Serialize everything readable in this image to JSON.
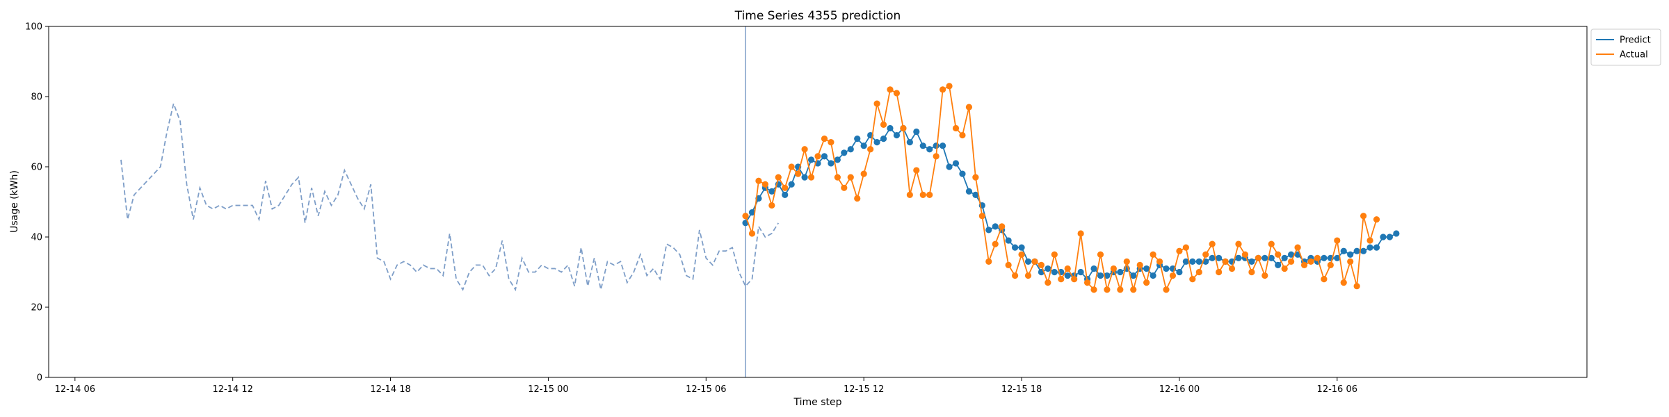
{
  "chart_data": {
    "type": "line",
    "title": "Time Series 4355 prediction",
    "xlabel": "Time step",
    "ylabel": "Usage (kWh)",
    "ylim": [
      0,
      100
    ],
    "xlim": [
      "2024-12-14T05:00",
      "2024-12-16T15:30"
    ],
    "yticks": [
      0,
      20,
      40,
      60,
      80,
      100
    ],
    "xticks": [
      {
        "t": "2024-12-14T06:00",
        "label": "12-14 06"
      },
      {
        "t": "2024-12-14T12:00",
        "label": "12-14 12"
      },
      {
        "t": "2024-12-14T18:00",
        "label": "12-14 18"
      },
      {
        "t": "2024-12-15T00:00",
        "label": "12-15 00"
      },
      {
        "t": "2024-12-15T06:00",
        "label": "12-15 06"
      },
      {
        "t": "2024-12-15T12:00",
        "label": "12-15 12"
      },
      {
        "t": "2024-12-15T18:00",
        "label": "12-15 18"
      },
      {
        "t": "2024-12-16T00:00",
        "label": "12-16 00"
      },
      {
        "t": "2024-12-16T06:00",
        "label": "12-16 06"
      }
    ],
    "grid": false,
    "legend_position": "upper-right-outside",
    "forecast_start": "2024-12-15T07:30",
    "history": {
      "start": "2024-12-14T07:45",
      "step_minutes": 15,
      "color": "#7e9ec8",
      "style": "dashed",
      "values": [
        62,
        45,
        52,
        54,
        56,
        58,
        60,
        70,
        78,
        73,
        55,
        45,
        54,
        49,
        48,
        49,
        48,
        49,
        49,
        49,
        49,
        45,
        56,
        48,
        49,
        52,
        55,
        57,
        44,
        54,
        46,
        53,
        49,
        52,
        59,
        55,
        51,
        48,
        55,
        34,
        33,
        28,
        32,
        33,
        32,
        30,
        32,
        31,
        31,
        29,
        41,
        28,
        25,
        30,
        32,
        32,
        29,
        31,
        39,
        28,
        25,
        34,
        30,
        30,
        32,
        31,
        31,
        30,
        32,
        26,
        37,
        26,
        34,
        25,
        33,
        32,
        33,
        27,
        30,
        35,
        29,
        31,
        28,
        38,
        37,
        35,
        29,
        28,
        42,
        34,
        32,
        36,
        36,
        37,
        30,
        26,
        28,
        43,
        40,
        41,
        44
      ]
    },
    "series": [
      {
        "name": "Predict",
        "color": "#1f77b4",
        "start": "2024-12-15T07:30",
        "step_minutes": 15,
        "values": [
          44,
          47,
          51,
          54,
          53,
          55,
          52,
          55,
          60,
          57,
          62,
          61,
          63,
          61,
          62,
          64,
          65,
          68,
          66,
          69,
          67,
          68,
          71,
          69,
          71,
          67,
          70,
          66,
          65,
          66,
          66,
          60,
          61,
          58,
          53,
          52,
          49,
          42,
          43,
          42,
          39,
          37,
          37,
          33,
          33,
          30,
          31,
          30,
          30,
          29,
          29,
          30,
          28,
          31,
          29,
          29,
          30,
          30,
          31,
          29,
          31,
          31,
          29,
          32,
          31,
          31,
          30,
          33,
          33,
          33,
          33,
          34,
          34,
          33,
          33,
          34,
          34,
          33,
          34,
          34,
          34,
          32,
          34,
          35,
          35,
          33,
          34,
          33,
          34,
          34,
          34,
          36,
          35,
          36,
          36,
          37,
          37,
          40,
          40,
          41
        ]
      },
      {
        "name": "Actual",
        "color": "#ff7f0e",
        "start": "2024-12-15T07:30",
        "step_minutes": 15,
        "values": [
          46,
          41,
          56,
          55,
          49,
          57,
          54,
          60,
          58,
          65,
          57,
          63,
          68,
          67,
          57,
          54,
          57,
          51,
          58,
          65,
          78,
          72,
          82,
          81,
          71,
          52,
          59,
          52,
          52,
          63,
          82,
          83,
          71,
          69,
          77,
          57,
          46,
          33,
          38,
          43,
          32,
          29,
          35,
          29,
          33,
          32,
          27,
          35,
          28,
          31,
          28,
          41,
          27,
          25,
          35,
          25,
          31,
          25,
          33,
          25,
          32,
          27,
          35,
          33,
          25,
          29,
          36,
          37,
          28,
          30,
          35,
          38,
          30,
          33,
          31,
          38,
          35,
          30,
          34,
          29,
          38,
          35,
          31,
          33,
          37,
          32,
          33,
          34,
          28,
          32,
          39,
          27,
          33,
          26,
          46,
          39,
          45
        ]
      }
    ]
  }
}
